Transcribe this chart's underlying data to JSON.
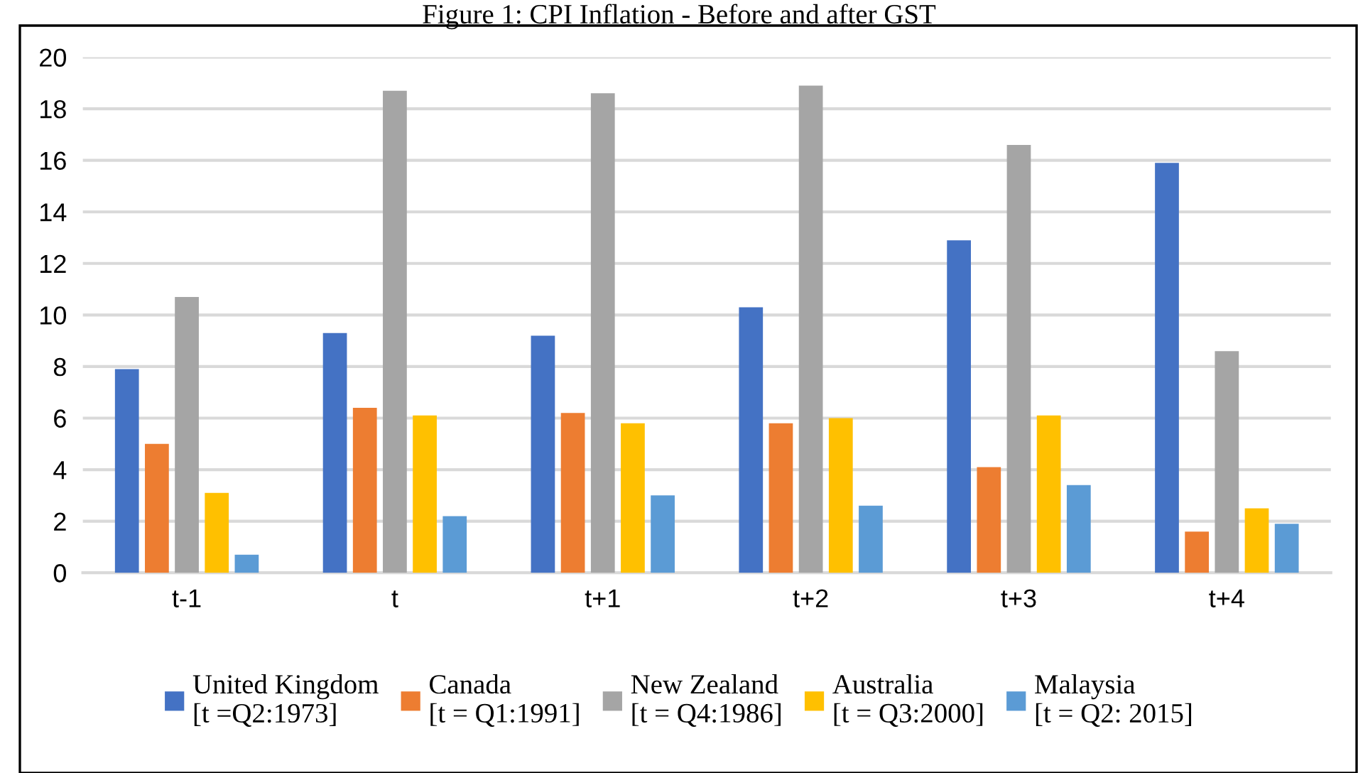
{
  "chart_data": {
    "type": "bar",
    "title": "Figure 1: CPI Inflation - Before and after GST",
    "categories": [
      "t-1",
      "t",
      "t+1",
      "t+2",
      "t+3",
      "t+4"
    ],
    "series": [
      {
        "name": "United Kingdom\n[t =Q2:1973]",
        "color": "#4472c4",
        "values": [
          7.9,
          9.3,
          9.2,
          10.3,
          12.9,
          15.9
        ]
      },
      {
        "name": "Canada\n[t = Q1:1991]",
        "color": "#ed7d31",
        "values": [
          5.0,
          6.4,
          6.2,
          5.8,
          4.1,
          1.6
        ]
      },
      {
        "name": "New Zealand\n[t = Q4:1986]",
        "color": "#a5a5a5",
        "values": [
          10.7,
          18.7,
          18.6,
          18.9,
          16.6,
          8.6
        ]
      },
      {
        "name": "Australia\n[t = Q3:2000]",
        "color": "#ffc000",
        "values": [
          3.1,
          6.1,
          5.8,
          6.0,
          6.1,
          2.5
        ]
      },
      {
        "name": "Malaysia\n[t = Q2: 2015]",
        "color": "#5b9bd5",
        "values": [
          0.7,
          2.2,
          3.0,
          2.6,
          3.4,
          1.9
        ]
      }
    ],
    "ylim": [
      0,
      20
    ],
    "yticks": [
      0,
      2,
      4,
      6,
      8,
      10,
      12,
      14,
      16,
      18,
      20
    ],
    "grid": "y",
    "legend": "bottom"
  }
}
